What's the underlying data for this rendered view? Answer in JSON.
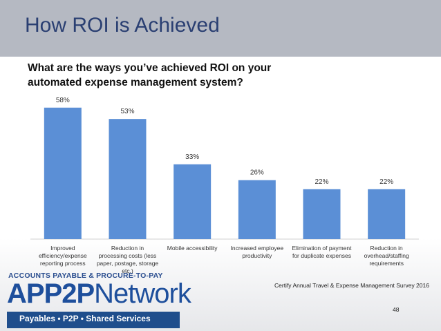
{
  "slide": {
    "title": "How ROI is Achieved",
    "question": "What are the ways you’ve achieved ROI on your automated expense management system?",
    "source": "Certify Annual Travel & Expense Management Survey 2016",
    "page_number": "48"
  },
  "logo": {
    "tagline": "ACCOUNTS PAYABLE & PROCURE-TO-PAY",
    "name_bold": "APP2P",
    "name_thin": "Network",
    "sub": "Payables • P2P • Shared Services"
  },
  "colors": {
    "bar": "#5b8fd6",
    "header": "#b5b9c2",
    "title": "#2a3f72"
  },
  "chart_data": {
    "type": "bar",
    "categories": [
      "Improved efficiency/expense reporting process",
      "Reduction in processing costs (less paper, postage, storage etc.)",
      "Mobile accessibility",
      "Increased employee productivity",
      "Elimination of payment for duplicate expenses",
      "Reduction in overhead/staffing requirements"
    ],
    "values": [
      58,
      53,
      33,
      26,
      22,
      22
    ],
    "value_labels": [
      "58%",
      "53%",
      "33%",
      "26%",
      "22%",
      "22%"
    ],
    "ylim": [
      0,
      60
    ],
    "grid": false
  }
}
